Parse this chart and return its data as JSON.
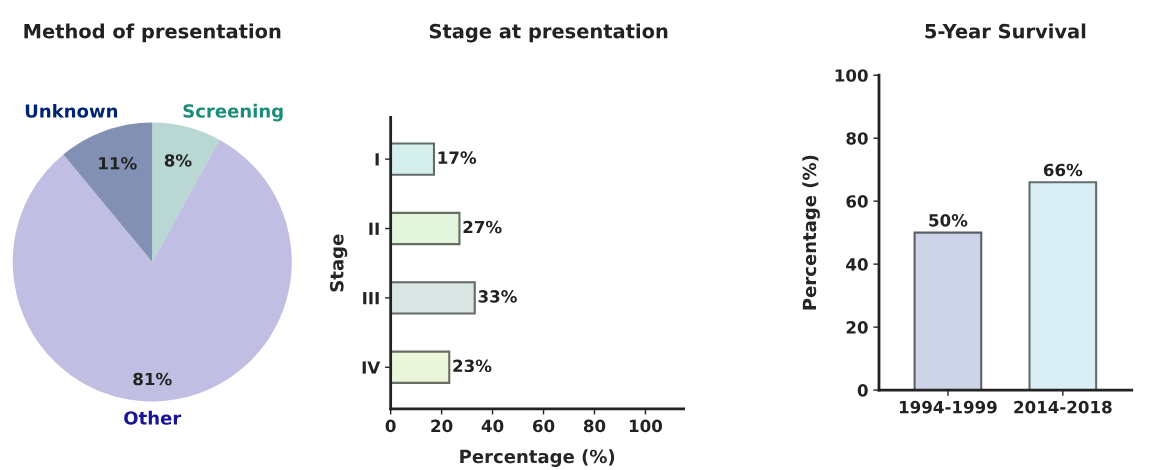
{
  "chart_data": [
    {
      "type": "pie",
      "title": "Method of presentation",
      "categories": [
        "Screening",
        "Other",
        "Unknown"
      ],
      "values": [
        8,
        81,
        11
      ],
      "colors": [
        "#b9d8d3",
        "#c0bee3",
        "#8291b3"
      ],
      "value_labels": [
        "8%",
        "81%",
        "11%"
      ]
    },
    {
      "type": "bar",
      "orientation": "horizontal",
      "title": "Stage at presentation",
      "xlabel": "Percentage (%)",
      "ylabel": "Stage",
      "categories": [
        "I",
        "II",
        "III",
        "IV"
      ],
      "values": [
        17,
        27,
        33,
        23
      ],
      "colors": [
        "#d5efec",
        "#e2f4dc",
        "#d9e6e4",
        "#eaf5da"
      ],
      "value_labels": [
        "17%",
        "27%",
        "33%",
        "23%"
      ],
      "xlim": [
        0,
        115
      ],
      "xticks": [
        0,
        20,
        40,
        60,
        80,
        100
      ]
    },
    {
      "type": "bar",
      "title": "5-Year Survival",
      "ylabel": "Percentage (%)",
      "categories": [
        "1994-1999",
        "2014-2018"
      ],
      "values": [
        50,
        66
      ],
      "colors": [
        "#ced4e8",
        "#d9eff5"
      ],
      "value_labels": [
        "50%",
        "66%"
      ],
      "ylim": [
        0,
        100
      ],
      "yticks": [
        0,
        20,
        40,
        60,
        80,
        100
      ]
    }
  ]
}
